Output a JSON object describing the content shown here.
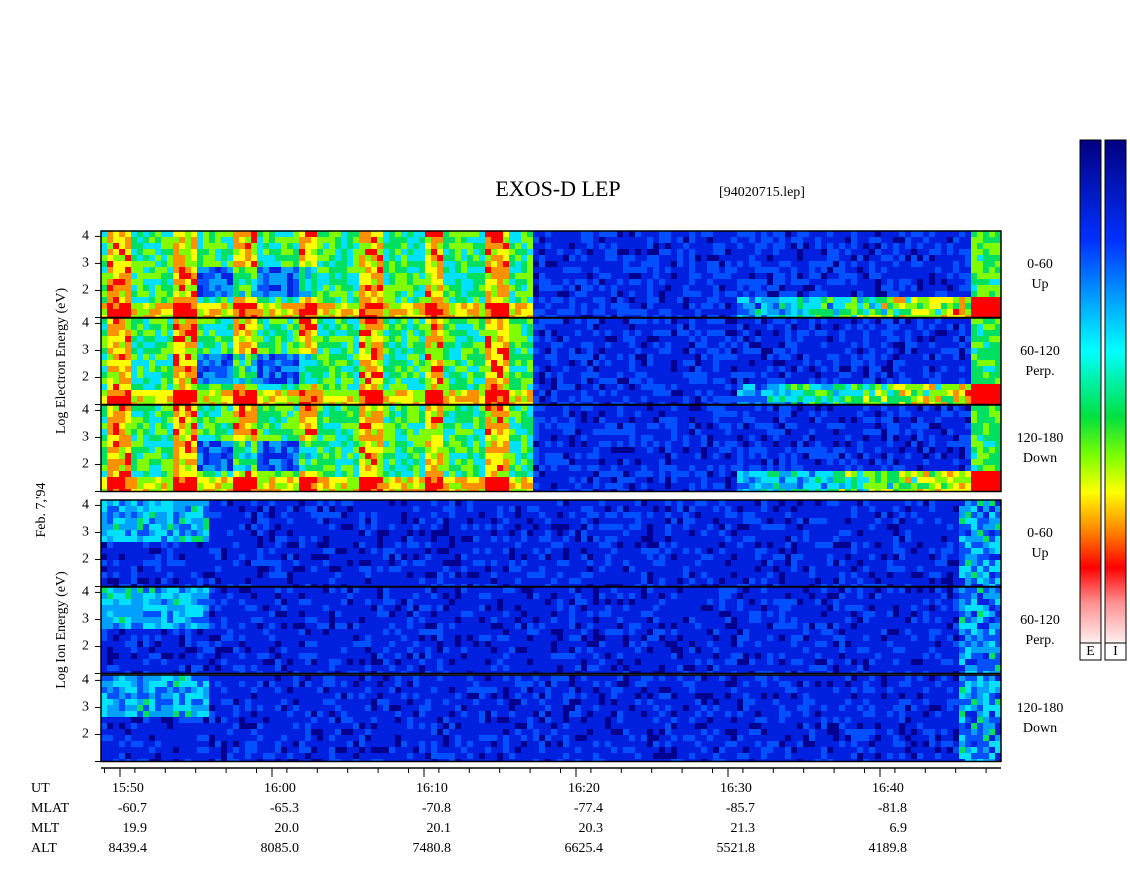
{
  "title": "EXOS-D LEP",
  "file": "[94020715.lep]",
  "date_label": "Feb. 7,'94",
  "axes": {
    "ylim": [
      1,
      4.2
    ],
    "yticks": [
      2,
      3,
      4
    ]
  },
  "groups": [
    {
      "kind": "electron",
      "label": "Log Electron Energy (eV)",
      "panels": [
        [
          "0-60",
          "Up"
        ],
        [
          "60-120",
          "Perp."
        ],
        [
          "120-180",
          "Down"
        ]
      ]
    },
    {
      "kind": "ion",
      "label": "Log Ion Energy (eV)",
      "panels": [
        [
          "0-60",
          "Up"
        ],
        [
          "60-120",
          "Perp."
        ],
        [
          "120-180",
          "Down"
        ]
      ]
    }
  ],
  "orbit": {
    "rows": [
      {
        "name": "UT",
        "values": [
          "15:50",
          "16:00",
          "16:10",
          "16:20",
          "16:30",
          "16:40"
        ]
      },
      {
        "name": "MLAT",
        "values": [
          "-60.7",
          "-65.3",
          "-70.8",
          "-77.4",
          "-85.7",
          "-81.8"
        ]
      },
      {
        "name": "MLT",
        "values": [
          "19.9",
          "20.0",
          "20.1",
          "20.3",
          "21.3",
          "6.9"
        ]
      },
      {
        "name": "ALT",
        "values": [
          "8439.4",
          "8085.0",
          "7480.8",
          "6625.4",
          "5521.8",
          "4189.8"
        ]
      }
    ]
  },
  "colorbars": [
    "E",
    "I"
  ]
}
